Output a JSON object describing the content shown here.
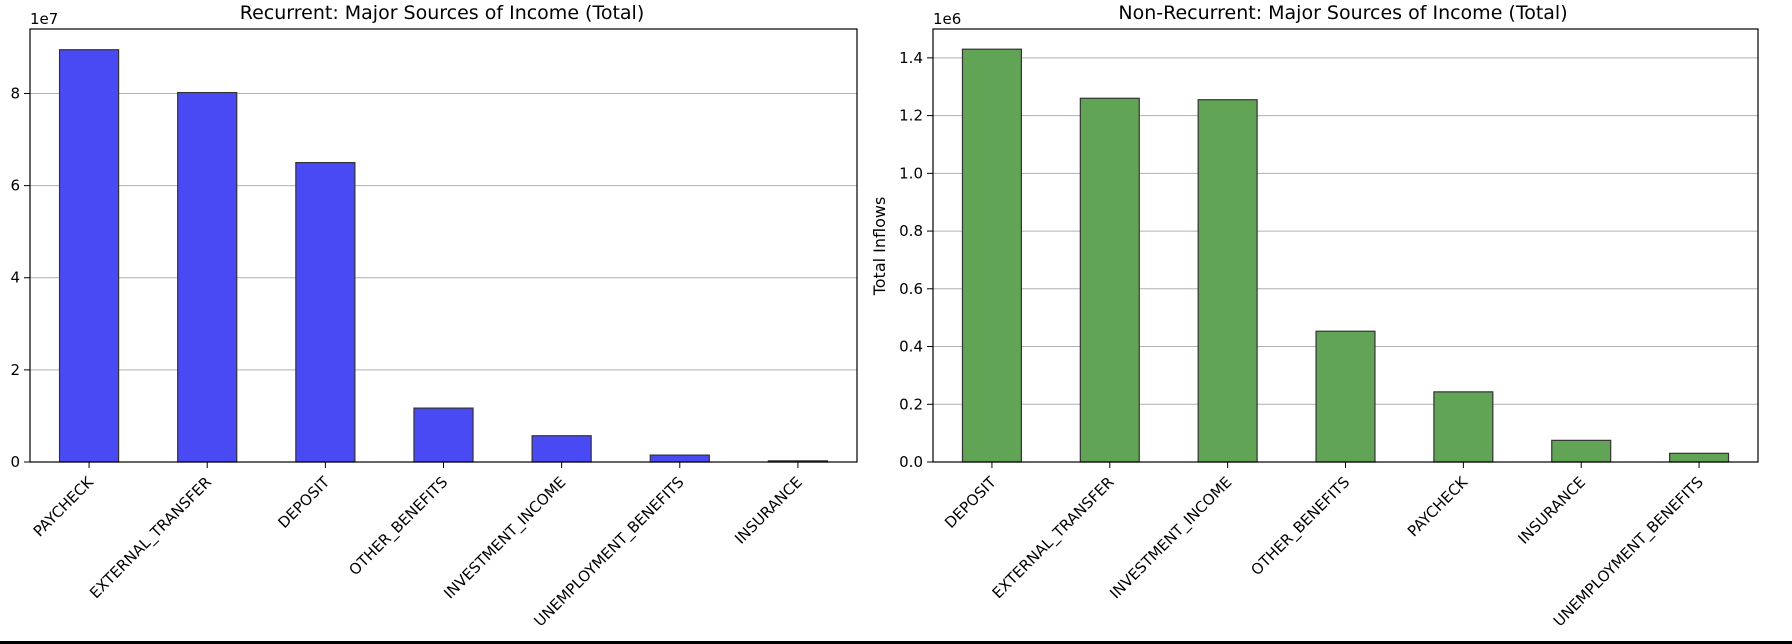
{
  "chart_data": [
    {
      "type": "bar",
      "title": "Recurrent: Major Sources of Income (Total)",
      "xlabel": "",
      "ylabel": "",
      "offset_label": "1e7",
      "categories": [
        "PAYCHECK",
        "EXTERNAL_TRANSFER",
        "DEPOSIT",
        "OTHER_BENEFITS",
        "INVESTMENT_INCOME",
        "UNEMPLOYMENT_BENEFITS",
        "INSURANCE"
      ],
      "values": [
        89500000,
        80200000,
        65000000,
        11700000,
        5700000,
        1500000,
        250000
      ],
      "ylim": [
        0,
        94000000
      ],
      "yticks": [
        0,
        20000000,
        40000000,
        60000000,
        80000000
      ],
      "ytick_labels": [
        "0",
        "2",
        "4",
        "6",
        "8"
      ],
      "bar_color": "#4a4af5",
      "grid": "y",
      "legend": "none"
    },
    {
      "type": "bar",
      "title": "Non-Recurrent: Major Sources of Income (Total)",
      "xlabel": "",
      "ylabel": "Total Inflows",
      "offset_label": "1e6",
      "categories": [
        "DEPOSIT",
        "EXTERNAL_TRANSFER",
        "INVESTMENT_INCOME",
        "OTHER_BENEFITS",
        "PAYCHECK",
        "INSURANCE",
        "UNEMPLOYMENT_BENEFITS"
      ],
      "values": [
        1430000,
        1260000,
        1255000,
        453000,
        243000,
        75000,
        30000
      ],
      "ylim": [
        0,
        1500000
      ],
      "yticks": [
        0,
        200000,
        400000,
        600000,
        800000,
        1000000,
        1200000,
        1400000
      ],
      "ytick_labels": [
        "0.0",
        "0.2",
        "0.4",
        "0.6",
        "0.8",
        "1.0",
        "1.2",
        "1.4"
      ],
      "bar_color": "#62a456",
      "grid": "y",
      "legend": "none"
    }
  ]
}
